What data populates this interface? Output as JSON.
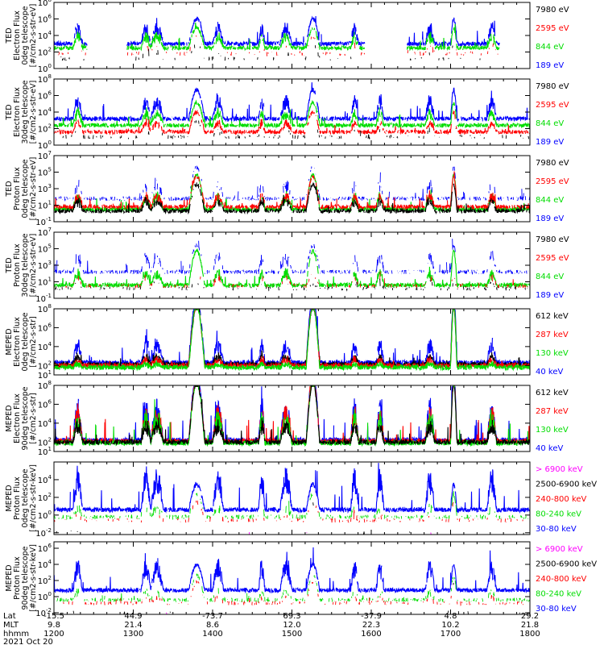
{
  "chart_data": {
    "type": "line",
    "time_axis": {
      "rows": [
        {
          "label": "Lat",
          "values": [
            "-15.5",
            "44.9",
            "-73.7",
            "69.3",
            "-37.9",
            "4.8",
            "29.2"
          ]
        },
        {
          "label": "MLT",
          "values": [
            "9.8",
            "21.4",
            "8.6",
            "12.0",
            "22.3",
            "10.2",
            "21.8"
          ]
        },
        {
          "label": "hhmm",
          "values": [
            "1200",
            "1300",
            "1400",
            "1500",
            "1600",
            "1700",
            "1800"
          ]
        }
      ],
      "date": "2021 Oct 20",
      "hours": [
        12,
        13,
        14,
        15,
        16,
        17,
        18
      ],
      "xlim": [
        12.0,
        18.0
      ]
    },
    "panels": [
      {
        "ylabel": [
          "TED",
          "Electron Flux",
          "0deg telescope",
          "[#/cm2-s-str-eV]"
        ],
        "tick_exponents": [
          0,
          2,
          4,
          6,
          8
        ],
        "yexp_range": [
          0,
          8
        ],
        "legend": [
          {
            "text": "7980 eV",
            "color": "#000000"
          },
          {
            "text": "2595 eV",
            "color": "#ff0000"
          },
          {
            "text": "844 eV",
            "color": "#00dd00"
          },
          {
            "text": "189 eV",
            "color": "#0000ff"
          }
        ],
        "traces": [
          {
            "color": "#0000ff",
            "base": 3.0,
            "pass": 1.9,
            "spike": 1.6,
            "gap": 0.25,
            "dense": 1
          },
          {
            "color": "#00dd00",
            "base": 2.5,
            "pass": 1.5,
            "spike": 1.2,
            "gap": 0.35,
            "dense": 1
          },
          {
            "color": "#ff0000",
            "base": 1.8,
            "pass": 1.3,
            "spike": 0.8,
            "gap": 0.6,
            "dense": 0
          },
          {
            "color": "#000000",
            "base": 1.2,
            "pass": 1.0,
            "spike": 0.6,
            "gap": 0.7,
            "dense": 0
          }
        ]
      },
      {
        "ylabel": [
          "TED",
          "Electron Flux",
          "30deg telescope",
          "[#/cm2-s-str-eV]"
        ],
        "tick_exponents": [
          0,
          2,
          4,
          6,
          8
        ],
        "yexp_range": [
          0,
          8
        ],
        "legend": [
          {
            "text": "7980 eV",
            "color": "#000000"
          },
          {
            "text": "2595 eV",
            "color": "#ff0000"
          },
          {
            "text": "844 eV",
            "color": "#00dd00"
          },
          {
            "text": "189 eV",
            "color": "#0000ff"
          }
        ],
        "traces": [
          {
            "color": "#0000ff",
            "base": 3.2,
            "pass": 2.2,
            "spike": 1.8,
            "gap": 0.2,
            "dense": 1
          },
          {
            "color": "#00dd00",
            "base": 2.4,
            "pass": 1.7,
            "spike": 1.3,
            "gap": 0.3,
            "dense": 1
          },
          {
            "color": "#ff0000",
            "base": 1.6,
            "pass": 1.5,
            "spike": 0.9,
            "gap": 0.5,
            "dense": 1
          },
          {
            "color": "#000000",
            "base": 1.0,
            "pass": 1.2,
            "spike": 0.7,
            "gap": 0.6,
            "dense": 0
          }
        ]
      },
      {
        "ylabel": [
          "TED",
          "Proton Flux",
          "0deg telescope",
          "[#/cm2-s-str-eV]"
        ],
        "tick_exponents": [
          -1,
          1,
          3,
          5,
          7
        ],
        "yexp_range": [
          -1,
          7
        ],
        "legend": [
          {
            "text": "7980 eV",
            "color": "#000000"
          },
          {
            "text": "2595 eV",
            "color": "#ff0000"
          },
          {
            "text": "844 eV",
            "color": "#00dd00"
          },
          {
            "text": "189 eV",
            "color": "#0000ff"
          }
        ],
        "traces": [
          {
            "color": "#0000ff",
            "base": 1.8,
            "pass": 2.4,
            "spike": 1.4,
            "gap": 0.3,
            "dense": 0
          },
          {
            "color": "#00dd00",
            "base": 0.5,
            "pass": 2.6,
            "spike": 1.3,
            "gap": 0.1,
            "dense": 1
          },
          {
            "color": "#ff0000",
            "base": 0.8,
            "pass": 2.3,
            "spike": 1.1,
            "gap": 0.4,
            "dense": 1
          },
          {
            "color": "#000000",
            "base": 0.3,
            "pass": 2.0,
            "spike": 1.0,
            "gap": 0.4,
            "dense": 1
          }
        ]
      },
      {
        "ylabel": [
          "TED",
          "Proton Flux",
          "30deg telescope",
          "[#/cm2-s-str-eV]"
        ],
        "tick_exponents": [
          -1,
          1,
          3,
          5,
          7
        ],
        "yexp_range": [
          -1,
          7
        ],
        "legend": [
          {
            "text": "7980 eV",
            "color": "#000000"
          },
          {
            "text": "2595 eV",
            "color": "#ff0000"
          },
          {
            "text": "844 eV",
            "color": "#00dd00"
          },
          {
            "text": "189 eV",
            "color": "#0000ff"
          }
        ],
        "traces": [
          {
            "color": "#0000ff",
            "base": 2.2,
            "pass": 2.0,
            "spike": 1.6,
            "gap": 0.25,
            "dense": 0
          },
          {
            "color": "#00dd00",
            "base": 0.6,
            "pass": 2.6,
            "spike": 1.2,
            "gap": 0.15,
            "dense": 1
          },
          {
            "color": "#ff0000",
            "base": 0.5,
            "pass": 0.8,
            "spike": 0.9,
            "gap": 0.55,
            "dense": 0
          },
          {
            "color": "#000000",
            "base": 0.2,
            "pass": 0.3,
            "spike": 0.6,
            "gap": 0.6,
            "dense": 0
          }
        ]
      },
      {
        "ylabel": [
          "MEPED",
          "Electron Flux",
          "0deg telescope",
          "[#/cm2-s-str]"
        ],
        "tick_exponents": [
          1,
          2,
          4,
          6,
          8
        ],
        "yexp_range": [
          1,
          8
        ],
        "legend": [
          {
            "text": "612 keV",
            "color": "#000000"
          },
          {
            "text": "287 keV",
            "color": "#ff0000"
          },
          {
            "text": "130 keV",
            "color": "#00dd00"
          },
          {
            "text": "40 keV",
            "color": "#0000ff"
          }
        ],
        "traces": [
          {
            "color": "#0000ff",
            "base": 2.3,
            "pass": 4.4,
            "spike": 1.6,
            "gap": 0.1,
            "dense": 1
          },
          {
            "color": "#000000",
            "base": 2.1,
            "pass": 3.8,
            "spike": 0.7,
            "gap": 0.1,
            "dense": 1
          },
          {
            "color": "#ff0000",
            "base": 2.0,
            "pass": 4.0,
            "spike": 0.5,
            "gap": 0.15,
            "dense": 1
          },
          {
            "color": "#00dd00",
            "base": 1.8,
            "pass": 4.1,
            "spike": 0.3,
            "gap": 0.05,
            "dense": 1
          }
        ]
      },
      {
        "ylabel": [
          "MEPED",
          "Electron Flux",
          "90deg telescope",
          "[#/cm2-s-str]"
        ],
        "tick_exponents": [
          1,
          2,
          4,
          6,
          8
        ],
        "yexp_range": [
          1,
          8
        ],
        "legend": [
          {
            "text": "612 keV",
            "color": "#000000"
          },
          {
            "text": "287 keV",
            "color": "#ff0000"
          },
          {
            "text": "130 keV",
            "color": "#00dd00"
          },
          {
            "text": "40 keV",
            "color": "#0000ff"
          }
        ],
        "traces": [
          {
            "color": "#0000ff",
            "base": 2.2,
            "pass": 4.4,
            "spike": 2.8,
            "gap": 0.1,
            "dense": 1
          },
          {
            "color": "#ff0000",
            "base": 2.1,
            "pass": 4.1,
            "spike": 2.4,
            "gap": 0.1,
            "dense": 1
          },
          {
            "color": "#00dd00",
            "base": 1.9,
            "pass": 4.0,
            "spike": 2.2,
            "gap": 0.05,
            "dense": 1
          },
          {
            "color": "#000000",
            "base": 2.0,
            "pass": 3.9,
            "spike": 1.5,
            "gap": 0.2,
            "dense": 1
          }
        ]
      },
      {
        "ylabel": [
          "MEPED",
          "Proton Flux",
          "0deg telescope",
          "[#/cm2-s-str-keV]"
        ],
        "tick_exponents": [
          -2,
          0,
          2,
          4
        ],
        "yexp_range": [
          -2.2,
          6
        ],
        "legend": [
          {
            "text": "> 6900 keV",
            "color": "#ff00ff"
          },
          {
            "text": "2500-6900 keV",
            "color": "#000000"
          },
          {
            "text": "240-800 keV",
            "color": "#ff0000"
          },
          {
            "text": "80-240 keV",
            "color": "#00dd00"
          },
          {
            "text": "30-80 keV",
            "color": "#0000ff"
          }
        ],
        "traces": [
          {
            "color": "#0000ff",
            "base": 0.6,
            "pass": 1.8,
            "spike": 3.0,
            "gap": 0.1,
            "dense": 1
          },
          {
            "color": "#00dd00",
            "base": -0.2,
            "pass": 1.6,
            "spike": 0.9,
            "gap": 0.4,
            "dense": 0
          },
          {
            "color": "#ff0000",
            "base": -0.6,
            "pass": 1.3,
            "spike": 0.5,
            "gap": 0.6,
            "dense": 0
          },
          {
            "color": "#000000",
            "base": -2.0,
            "pass": 2.0,
            "spike": 0.0,
            "gap": 0.9,
            "dense": 0
          },
          {
            "color": "#ff00ff",
            "base": -2.1,
            "pass": 0.8,
            "spike": 0.0,
            "gap": 0.95,
            "dense": 0
          }
        ]
      },
      {
        "ylabel": [
          "MEPED",
          "Proton Flux",
          "90deg telescope",
          "[#/cm2-s-str-keV]"
        ],
        "tick_exponents": [
          -2,
          0,
          2,
          4,
          6
        ],
        "yexp_range": [
          -2.2,
          6.8
        ],
        "legend": [
          {
            "text": "> 6900 keV",
            "color": "#ff00ff"
          },
          {
            "text": "2500-6900 keV",
            "color": "#000000"
          },
          {
            "text": "240-800 keV",
            "color": "#ff0000"
          },
          {
            "text": "80-240 keV",
            "color": "#00dd00"
          },
          {
            "text": "30-80 keV",
            "color": "#0000ff"
          }
        ],
        "traces": [
          {
            "color": "#0000ff",
            "base": 0.8,
            "pass": 2.0,
            "spike": 2.4,
            "gap": 0.1,
            "dense": 1
          },
          {
            "color": "#00dd00",
            "base": -0.4,
            "pass": 1.9,
            "spike": 0.9,
            "gap": 0.35,
            "dense": 0
          },
          {
            "color": "#ff0000",
            "base": -0.8,
            "pass": 1.6,
            "spike": 0.6,
            "gap": 0.55,
            "dense": 0
          },
          {
            "color": "#000000",
            "base": -2.0,
            "pass": 2.4,
            "spike": 0.0,
            "gap": 0.9,
            "dense": 0
          },
          {
            "color": "#ff00ff",
            "base": -2.1,
            "pass": 1.0,
            "spike": 0.0,
            "gap": 0.95,
            "dense": 0
          }
        ]
      }
    ],
    "passes": [
      {
        "start": 12.24,
        "end": 12.36,
        "kind": "aurora"
      },
      {
        "start": 13.1,
        "end": 13.22,
        "kind": "aurora"
      },
      {
        "start": 13.22,
        "end": 13.38,
        "kind": "aurora"
      },
      {
        "start": 13.7,
        "end": 13.9,
        "kind": "saa"
      },
      {
        "start": 14.0,
        "end": 14.14,
        "kind": "aurora"
      },
      {
        "start": 14.58,
        "end": 14.66,
        "kind": "aurora"
      },
      {
        "start": 14.85,
        "end": 15.0,
        "kind": "aurora"
      },
      {
        "start": 15.18,
        "end": 15.35,
        "kind": "saa"
      },
      {
        "start": 15.74,
        "end": 15.84,
        "kind": "aurora"
      },
      {
        "start": 16.06,
        "end": 16.16,
        "kind": "aurora"
      },
      {
        "start": 16.68,
        "end": 16.8,
        "kind": "aurora"
      },
      {
        "start": 17.0,
        "end": 17.08,
        "kind": "saa"
      },
      {
        "start": 17.46,
        "end": 17.58,
        "kind": "aurora"
      }
    ],
    "gaps": [
      {
        "start": 12.42,
        "end": 12.92,
        "panels": [
          0
        ]
      },
      {
        "start": 15.92,
        "end": 16.45,
        "panels": [
          0
        ]
      },
      {
        "start": 17.62,
        "end": 18.0,
        "panels": [
          0
        ]
      }
    ]
  }
}
